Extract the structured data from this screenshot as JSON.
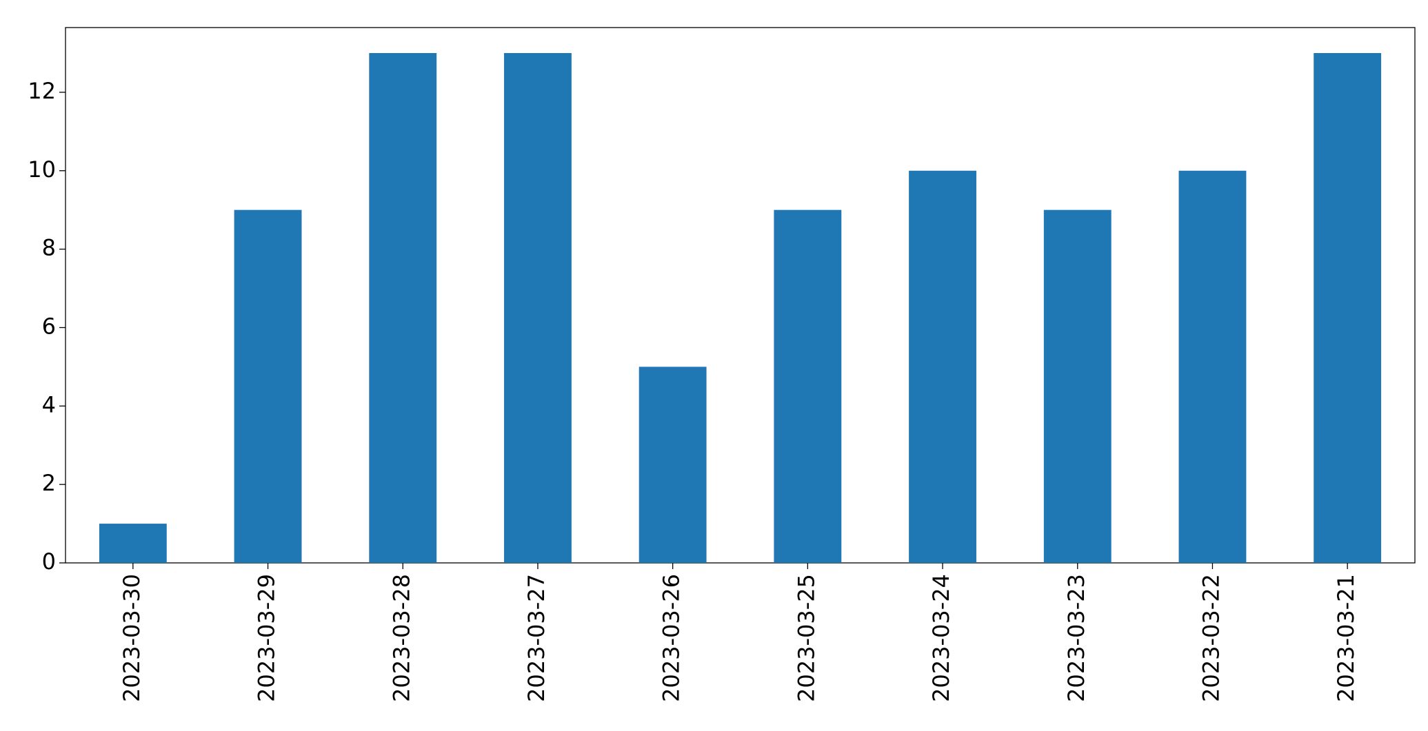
{
  "chart_data": {
    "type": "bar",
    "categories": [
      "2023-03-30",
      "2023-03-29",
      "2023-03-28",
      "2023-03-27",
      "2023-03-26",
      "2023-03-25",
      "2023-03-24",
      "2023-03-23",
      "2023-03-22",
      "2023-03-21"
    ],
    "values": [
      1,
      9,
      13,
      13,
      5,
      9,
      10,
      9,
      10,
      13
    ],
    "color": "#1f77b4",
    "ylim": [
      0,
      13.65
    ],
    "yticks": [
      0,
      2,
      4,
      6,
      8,
      10,
      12
    ],
    "grid": false
  }
}
